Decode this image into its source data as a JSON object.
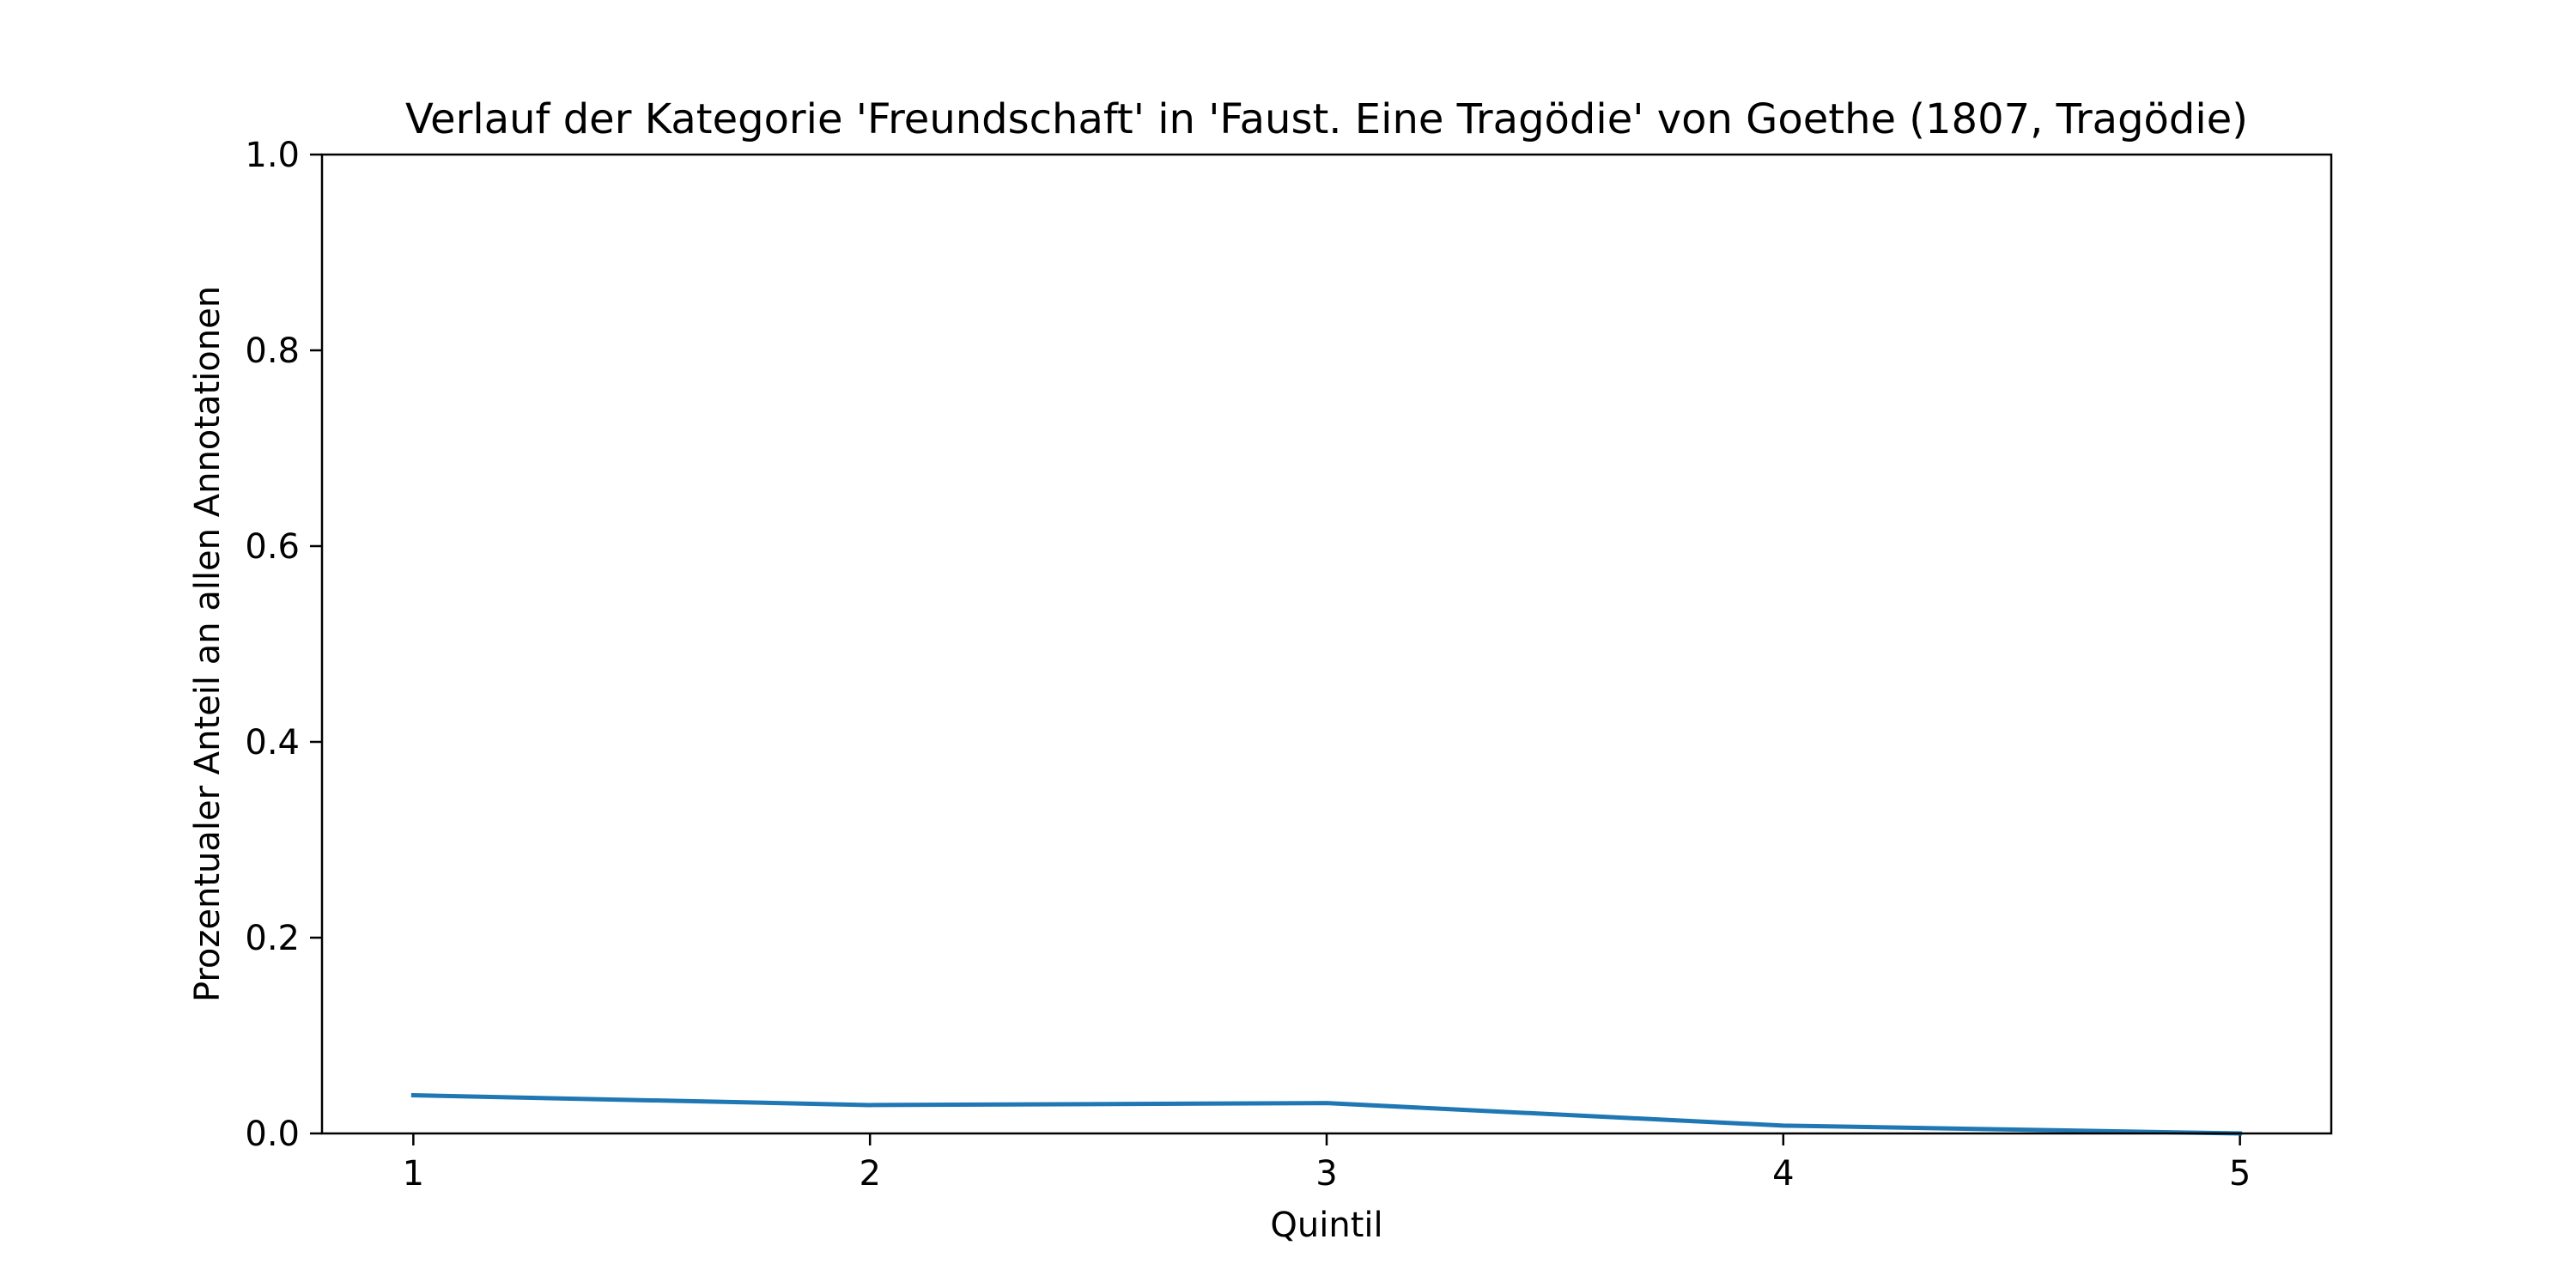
{
  "chart_data": {
    "type": "line",
    "title": "Verlauf der Kategorie 'Freundschaft' in 'Faust. Eine Tragödie' von Goethe (1807, Tragödie)",
    "xlabel": "Quintil",
    "ylabel": "Prozentualer Anteil an allen Annotationen",
    "x": [
      1,
      2,
      3,
      4,
      5
    ],
    "x_tick_labels": [
      "1",
      "2",
      "3",
      "4",
      "5"
    ],
    "xlim": [
      0.8,
      5.2
    ],
    "ylim": [
      0.0,
      1.0
    ],
    "y_ticks": [
      0.0,
      0.2,
      0.4,
      0.6,
      0.8,
      1.0
    ],
    "y_tick_labels": [
      "0.0",
      "0.2",
      "0.4",
      "0.6",
      "0.8",
      "1.0"
    ],
    "grid": false,
    "series": [
      {
        "values": [
          0.039,
          0.029,
          0.031,
          0.008,
          0.0
        ],
        "color": "#1f77b4"
      }
    ]
  }
}
